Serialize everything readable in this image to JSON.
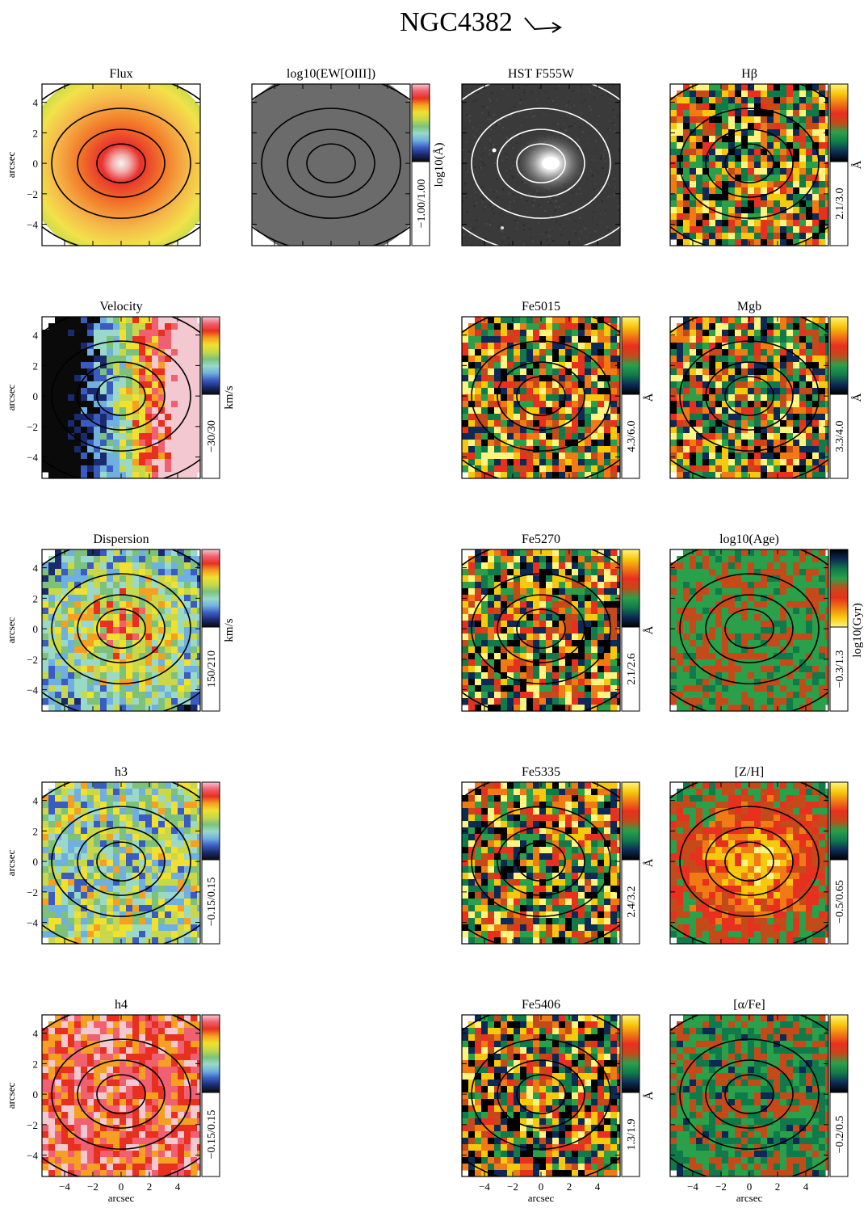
{
  "title": "NGC4382",
  "axis_label": "arcsec",
  "tick_labels": [
    "4",
    "2",
    "0",
    "−2",
    "−4"
  ],
  "x_tick_labels": [
    "−4",
    "−2",
    "0",
    "2",
    "4"
  ],
  "colors": {
    "rainbow": [
      "#0a0a0a",
      "#1a2a6e",
      "#3a5cc0",
      "#6fb0e0",
      "#9ad9c8",
      "#7cc27c",
      "#c8d84a",
      "#f0e030",
      "#f5a020",
      "#e83020",
      "#f06070",
      "#f3c8d0"
    ],
    "index": [
      "#000000",
      "#0d2a55",
      "#117a4a",
      "#2aa04a",
      "#c54a1a",
      "#e8301e",
      "#f07a14",
      "#f7c90c",
      "#fff480"
    ]
  },
  "panels": [
    {
      "id": "flux",
      "title": "Flux",
      "row": 0,
      "col": 0,
      "colorbar": false,
      "cbar_label": "",
      "cbar_range": "",
      "style": "flux"
    },
    {
      "id": "ew",
      "title": "log10(EW[OIII])",
      "row": 0,
      "col": 1,
      "colorbar": true,
      "cbar_label": "log10(Å)",
      "cbar_range": "−1.00/1.00",
      "style": "gray",
      "cmap": "rainbow"
    },
    {
      "id": "hst",
      "title": "HST F555W",
      "row": 0,
      "col": 2,
      "colorbar": false,
      "cbar_label": "",
      "cbar_range": "",
      "style": "hst"
    },
    {
      "id": "hbeta",
      "title": "Hβ",
      "row": 0,
      "col": 3,
      "colorbar": true,
      "cbar_label": "Å",
      "cbar_range": "2.1/3.0",
      "style": "index",
      "cmap": "index"
    },
    {
      "id": "vel",
      "title": "Velocity",
      "row": 1,
      "col": 0,
      "colorbar": true,
      "cbar_label": "km/s",
      "cbar_range": "−30/30",
      "style": "velocity",
      "cmap": "rainbow"
    },
    {
      "id": "fe5015",
      "title": "Fe5015",
      "row": 1,
      "col": 2,
      "colorbar": true,
      "cbar_label": "Å",
      "cbar_range": "4.3/6.0",
      "style": "index",
      "cmap": "index"
    },
    {
      "id": "mgb",
      "title": "Mgb",
      "row": 1,
      "col": 3,
      "colorbar": true,
      "cbar_label": "Å",
      "cbar_range": "3.3/4.0",
      "style": "index",
      "cmap": "index"
    },
    {
      "id": "disp",
      "title": "Dispersion",
      "row": 2,
      "col": 0,
      "colorbar": true,
      "cbar_label": "km/s",
      "cbar_range": "150/210",
      "style": "dispersion",
      "cmap": "rainbow"
    },
    {
      "id": "fe5270",
      "title": "Fe5270",
      "row": 2,
      "col": 2,
      "colorbar": true,
      "cbar_label": "Å",
      "cbar_range": "2.1/2.6",
      "style": "index",
      "cmap": "index"
    },
    {
      "id": "age",
      "title": "log10(Age)",
      "row": 2,
      "col": 3,
      "colorbar": true,
      "cbar_label": "log10(Gyr)",
      "cbar_range": "−0.3/1.3",
      "style": "age",
      "cmap": "index_rev"
    },
    {
      "id": "h3",
      "title": "h3",
      "row": 3,
      "col": 0,
      "colorbar": true,
      "cbar_label": "",
      "cbar_range": "−0.15/0.15",
      "style": "h3",
      "cmap": "rainbow"
    },
    {
      "id": "fe5335",
      "title": "Fe5335",
      "row": 3,
      "col": 2,
      "colorbar": true,
      "cbar_label": "Å",
      "cbar_range": "2.4/3.2",
      "style": "index",
      "cmap": "index"
    },
    {
      "id": "zh",
      "title": "[Z/H]",
      "row": 3,
      "col": 3,
      "colorbar": true,
      "cbar_label": "",
      "cbar_range": "−0.5/0.65",
      "style": "zh",
      "cmap": "index"
    },
    {
      "id": "h4",
      "title": "h4",
      "row": 4,
      "col": 0,
      "colorbar": true,
      "cbar_label": "",
      "cbar_range": "−0.15/0.15",
      "style": "h4",
      "cmap": "rainbow"
    },
    {
      "id": "fe5406",
      "title": "Fe5406",
      "row": 4,
      "col": 2,
      "colorbar": true,
      "cbar_label": "Å",
      "cbar_range": "1.3/1.9",
      "style": "index",
      "cmap": "index"
    },
    {
      "id": "afe",
      "title": "[α/Fe]",
      "row": 4,
      "col": 3,
      "colorbar": true,
      "cbar_label": "",
      "cbar_range": "−0.2/0.5",
      "style": "afe",
      "cmap": "index"
    }
  ]
}
